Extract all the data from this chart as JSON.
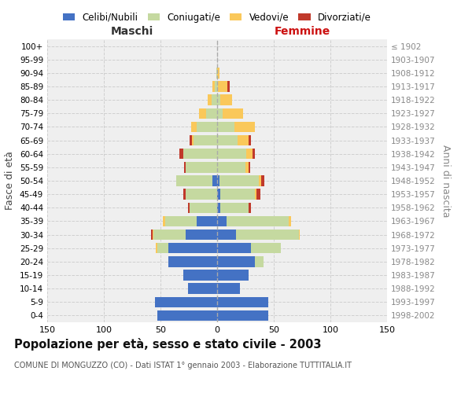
{
  "age_groups": [
    "0-4",
    "5-9",
    "10-14",
    "15-19",
    "20-24",
    "25-29",
    "30-34",
    "35-39",
    "40-44",
    "45-49",
    "50-54",
    "55-59",
    "60-64",
    "65-69",
    "70-74",
    "75-79",
    "80-84",
    "85-89",
    "90-94",
    "95-99",
    "100+"
  ],
  "birth_years": [
    "1998-2002",
    "1993-1997",
    "1988-1992",
    "1983-1987",
    "1978-1982",
    "1973-1977",
    "1968-1972",
    "1963-1967",
    "1958-1962",
    "1953-1957",
    "1948-1952",
    "1943-1947",
    "1938-1942",
    "1933-1937",
    "1928-1932",
    "1923-1927",
    "1918-1922",
    "1913-1917",
    "1908-1912",
    "1903-1907",
    "≤ 1902"
  ],
  "male": {
    "celibi": [
      53,
      55,
      26,
      30,
      43,
      43,
      28,
      18,
      0,
      0,
      4,
      0,
      0,
      0,
      0,
      0,
      0,
      0,
      0,
      0,
      0
    ],
    "coniugati": [
      0,
      0,
      0,
      0,
      0,
      10,
      28,
      28,
      24,
      28,
      32,
      28,
      30,
      21,
      18,
      10,
      5,
      2,
      1,
      0,
      0
    ],
    "vedovi": [
      0,
      0,
      0,
      0,
      0,
      1,
      1,
      2,
      0,
      0,
      0,
      0,
      0,
      1,
      5,
      6,
      3,
      2,
      0,
      0,
      0
    ],
    "divorziati": [
      0,
      0,
      0,
      0,
      0,
      0,
      1,
      0,
      2,
      2,
      0,
      1,
      3,
      2,
      0,
      0,
      0,
      0,
      0,
      0,
      0
    ]
  },
  "female": {
    "nubili": [
      45,
      45,
      20,
      28,
      33,
      30,
      17,
      8,
      3,
      3,
      2,
      0,
      0,
      0,
      0,
      0,
      0,
      0,
      0,
      0,
      0
    ],
    "coniugate": [
      0,
      0,
      0,
      0,
      8,
      26,
      55,
      55,
      25,
      30,
      35,
      25,
      26,
      18,
      15,
      5,
      3,
      1,
      0,
      0,
      0
    ],
    "vedove": [
      0,
      0,
      0,
      0,
      0,
      0,
      1,
      2,
      0,
      2,
      2,
      3,
      5,
      10,
      18,
      18,
      10,
      8,
      2,
      0,
      0
    ],
    "divorziate": [
      0,
      0,
      0,
      0,
      0,
      0,
      0,
      0,
      2,
      3,
      3,
      1,
      2,
      2,
      0,
      0,
      0,
      2,
      0,
      0,
      0
    ]
  },
  "colors": {
    "celibi_nubili": "#4472C4",
    "coniugati": "#C5D9A0",
    "vedovi": "#FAC85A",
    "divorziati": "#C0392B"
  },
  "title": "Popolazione per età, sesso e stato civile - 2003",
  "subtitle": "COMUNE DI MONGUZZO (CO) - Dati ISTAT 1° gennaio 2003 - Elaborazione TUTTITALIA.IT",
  "xlabel_left": "Maschi",
  "xlabel_right": "Femmine",
  "ylabel_left": "Fasce di età",
  "ylabel_right": "Anni di nascita",
  "xlim": 150,
  "legend_labels": [
    "Celibi/Nubili",
    "Coniugati/e",
    "Vedovi/e",
    "Divorziati/e"
  ],
  "bg_color": "#FFFFFF",
  "plot_bg": "#EFEFEF",
  "grid_color": "#CCCCCC"
}
